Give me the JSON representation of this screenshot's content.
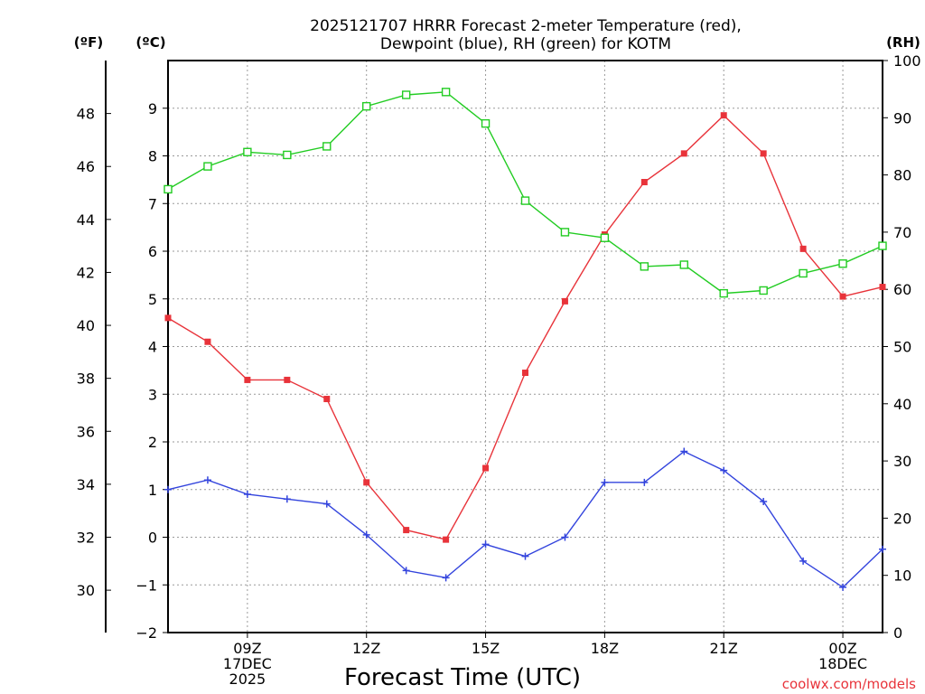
{
  "chart_data": {
    "type": "line",
    "title_lines": [
      "2025121707 HRRR Forecast 2-meter Temperature (red),",
      "Dewpoint (blue), RH (green) for KOTM"
    ],
    "xlabel": "Forecast Time (UTC)",
    "credit": "coolwx.com/models",
    "units": {
      "left_f": "(ºF)",
      "left_c": "(ºC)",
      "right": "(RH)"
    },
    "x_hours": [
      7,
      8,
      9,
      10,
      11,
      12,
      13,
      14,
      15,
      16,
      17,
      18,
      19,
      20,
      21,
      22,
      23,
      24,
      25
    ],
    "xlim": [
      7,
      25
    ],
    "x_ticks": [
      {
        "hour": 9,
        "lines": [
          "09Z",
          "17DEC",
          "2025"
        ]
      },
      {
        "hour": 12,
        "lines": [
          "12Z"
        ]
      },
      {
        "hour": 15,
        "lines": [
          "15Z"
        ]
      },
      {
        "hour": 18,
        "lines": [
          "18Z"
        ]
      },
      {
        "hour": 21,
        "lines": [
          "21Z"
        ]
      },
      {
        "hour": 24,
        "lines": [
          "00Z",
          "18DEC"
        ]
      }
    ],
    "celsius_axis": {
      "ylim": [
        -2,
        10
      ],
      "ticks": [
        -2,
        -1,
        0,
        1,
        2,
        3,
        4,
        5,
        6,
        7,
        8,
        9
      ]
    },
    "fahrenheit_axis": {
      "ticks": [
        30,
        32,
        34,
        36,
        38,
        40,
        42,
        44,
        46,
        48
      ]
    },
    "rh_axis": {
      "ylim": [
        0,
        100
      ],
      "ticks": [
        0,
        10,
        20,
        30,
        40,
        50,
        60,
        70,
        80,
        90,
        100
      ]
    },
    "series": [
      {
        "name": "Temperature",
        "unit": "C",
        "color": "#e8333a",
        "marker": "filled-square",
        "values": [
          4.6,
          4.1,
          3.3,
          3.3,
          2.9,
          1.15,
          0.15,
          -0.05,
          1.45,
          3.45,
          4.95,
          6.35,
          7.45,
          8.05,
          8.85,
          8.05,
          6.05,
          5.05,
          5.25
        ]
      },
      {
        "name": "Dewpoint",
        "unit": "C",
        "color": "#3344dd",
        "marker": "plus",
        "values": [
          1.0,
          1.2,
          0.9,
          0.8,
          0.7,
          0.05,
          -0.7,
          -0.85,
          -0.15,
          -0.4,
          0.0,
          1.15,
          1.15,
          1.8,
          1.4,
          0.75,
          -0.5,
          -1.05,
          -0.25
        ]
      },
      {
        "name": "RH",
        "unit": "%",
        "color": "#22cc22",
        "marker": "open-square",
        "values": [
          77.5,
          81.5,
          84,
          83.5,
          85,
          92,
          94,
          94.5,
          89,
          75.5,
          70,
          69,
          64,
          64.3,
          59.3,
          59.8,
          62.8,
          64.5,
          67.6
        ]
      }
    ]
  }
}
